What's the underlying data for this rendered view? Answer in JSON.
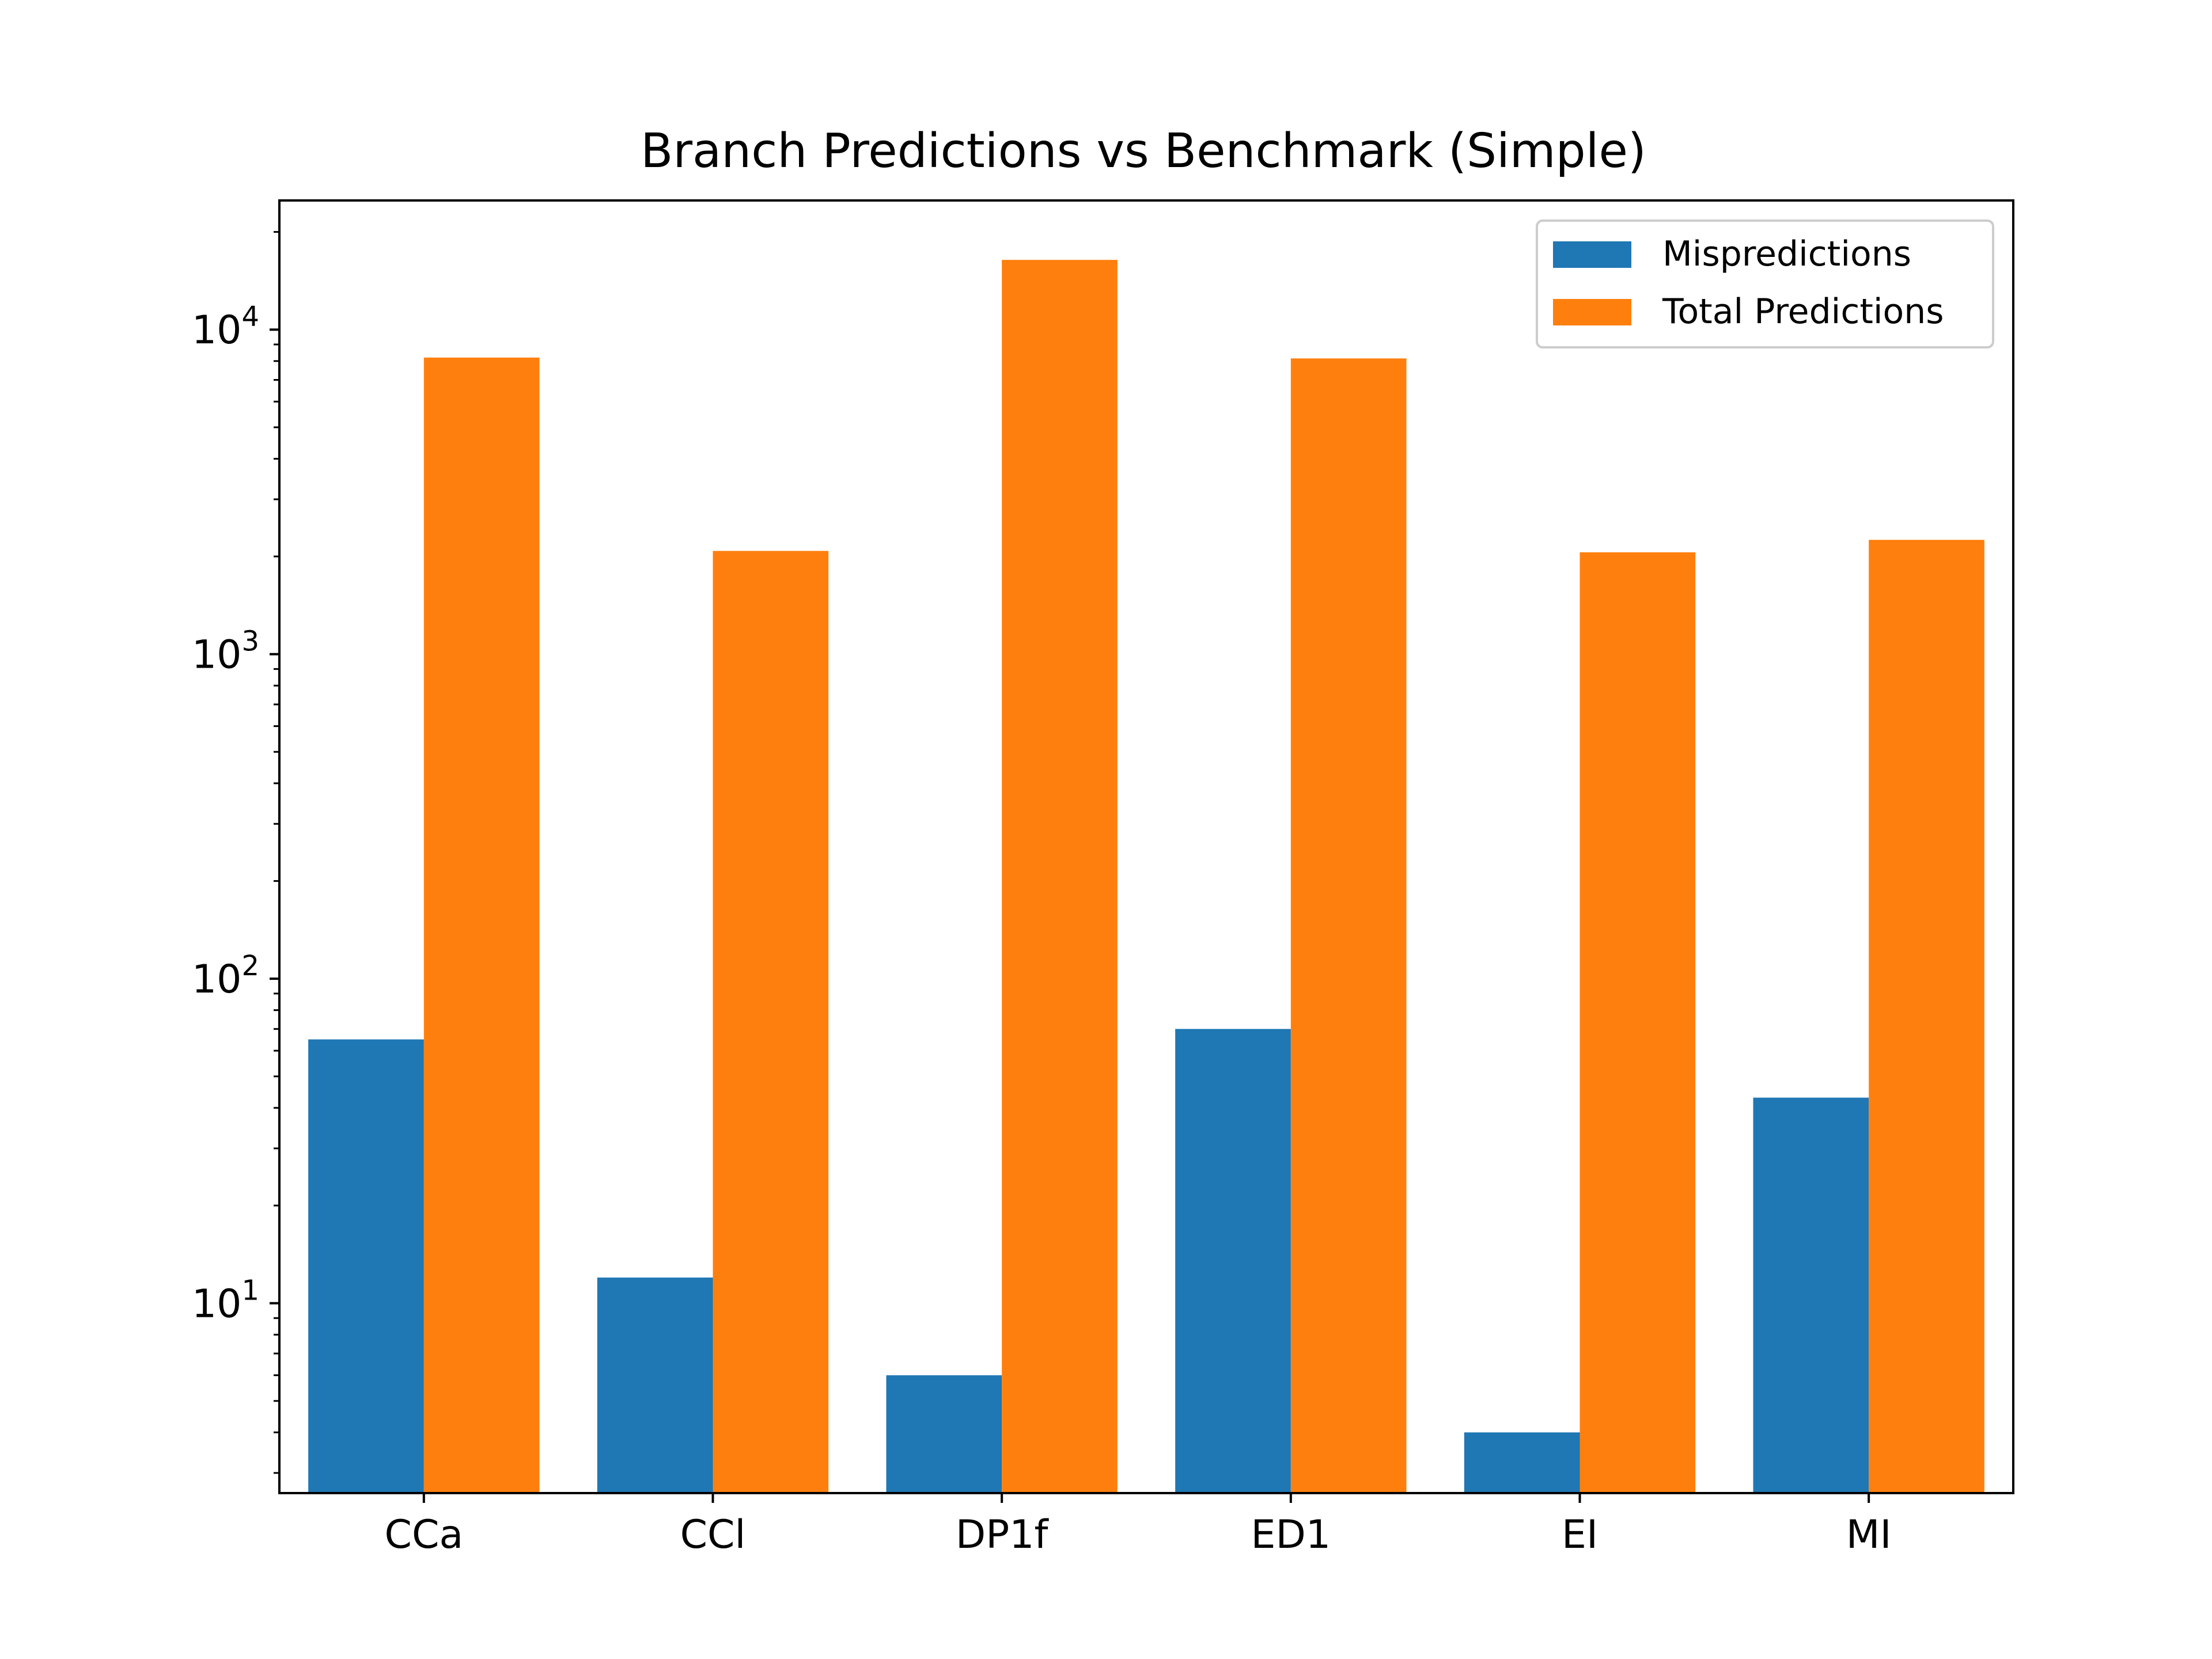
{
  "chart_data": {
    "type": "bar",
    "title": "Branch Predictions vs Benchmark (Simple)",
    "xlabel": "",
    "ylabel": "",
    "yscale": "log",
    "ylim": [
      2.6,
      25000
    ],
    "yticks": [
      {
        "value": 10,
        "base": "10",
        "exp": "1"
      },
      {
        "value": 100,
        "base": "10",
        "exp": "2"
      },
      {
        "value": 1000,
        "base": "10",
        "exp": "3"
      },
      {
        "value": 10000,
        "base": "10",
        "exp": "4"
      }
    ],
    "categories": [
      "CCa",
      "CCl",
      "DP1f",
      "ED1",
      "EI",
      "MI"
    ],
    "series": [
      {
        "name": "Mispredictions",
        "color": "#1f77b4",
        "values": [
          65,
          12,
          6,
          70,
          4,
          43
        ]
      },
      {
        "name": "Total Predictions",
        "color": "#ff7f0e",
        "values": [
          8200,
          2080,
          16400,
          8150,
          2060,
          2250
        ]
      }
    ],
    "legend_position": "top-right",
    "grid": false
  }
}
